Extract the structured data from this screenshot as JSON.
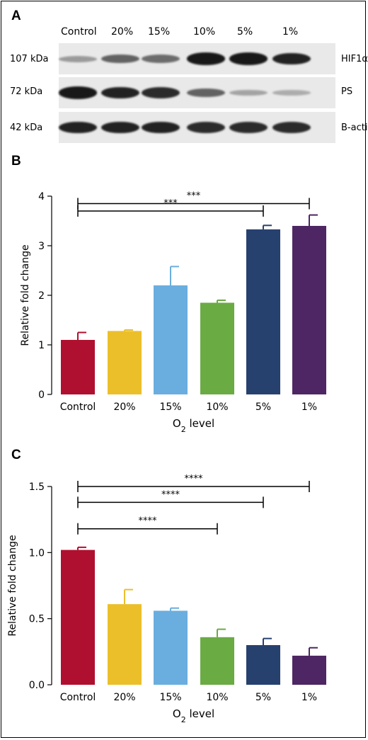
{
  "panels": {
    "a": "A",
    "b": "B",
    "c": "C"
  },
  "western_blot": {
    "lane_labels": [
      "Control",
      "20%",
      "15%",
      "10%",
      "5%",
      "1%"
    ],
    "rows": [
      {
        "mw": "107 kDa",
        "protein": "HIF1α",
        "intensity": [
          0.25,
          0.55,
          0.5,
          0.95,
          0.95,
          0.9
        ]
      },
      {
        "mw": "72 kDa",
        "protein": "PS",
        "intensity": [
          0.95,
          0.9,
          0.85,
          0.55,
          0.2,
          0.15
        ]
      },
      {
        "mw": "42 kDa",
        "protein": "B-actin",
        "intensity": [
          0.9,
          0.9,
          0.9,
          0.85,
          0.85,
          0.85
        ]
      }
    ]
  },
  "chart_data": [
    {
      "type": "bar",
      "panel": "B",
      "categories": [
        "Control",
        "20%",
        "15%",
        "10%",
        "5%",
        "1%"
      ],
      "values": [
        1.1,
        1.28,
        2.2,
        1.85,
        3.33,
        3.4
      ],
      "errors": [
        0.15,
        0.02,
        0.38,
        0.05,
        0.08,
        0.22
      ],
      "colors": [
        "#b0102f",
        "#ebbf2a",
        "#6aaedf",
        "#6aab44",
        "#27416f",
        "#4e2663"
      ],
      "xlabel": "O2 level",
      "ylabel": "Relative fold change",
      "ylim": [
        0,
        4
      ],
      "yticks": [
        0,
        1,
        2,
        3,
        4
      ],
      "significance": [
        {
          "from": "Control",
          "to": "1%",
          "label": "***",
          "y": 3.85
        },
        {
          "from": "Control",
          "to": "5%",
          "label": "***",
          "y": 3.7
        }
      ]
    },
    {
      "type": "bar",
      "panel": "C",
      "categories": [
        "Control",
        "20%",
        "15%",
        "10%",
        "5%",
        "1%"
      ],
      "values": [
        1.02,
        0.61,
        0.56,
        0.36,
        0.3,
        0.22
      ],
      "errors": [
        0.02,
        0.11,
        0.02,
        0.06,
        0.05,
        0.06
      ],
      "colors": [
        "#b0102f",
        "#ebbf2a",
        "#6aaedf",
        "#6aab44",
        "#27416f",
        "#4e2663"
      ],
      "xlabel": "O2 level",
      "ylabel": "Relative fold change",
      "ylim": [
        0,
        1.5
      ],
      "yticks": [
        "0.0",
        "0.5",
        "1.0",
        "1.5"
      ],
      "significance": [
        {
          "from": "Control",
          "to": "1%",
          "label": "****",
          "y": 1.5
        },
        {
          "from": "Control",
          "to": "5%",
          "label": "****",
          "y": 1.38
        },
        {
          "from": "Control",
          "to": "10%",
          "label": "****",
          "y": 1.18
        }
      ]
    }
  ]
}
